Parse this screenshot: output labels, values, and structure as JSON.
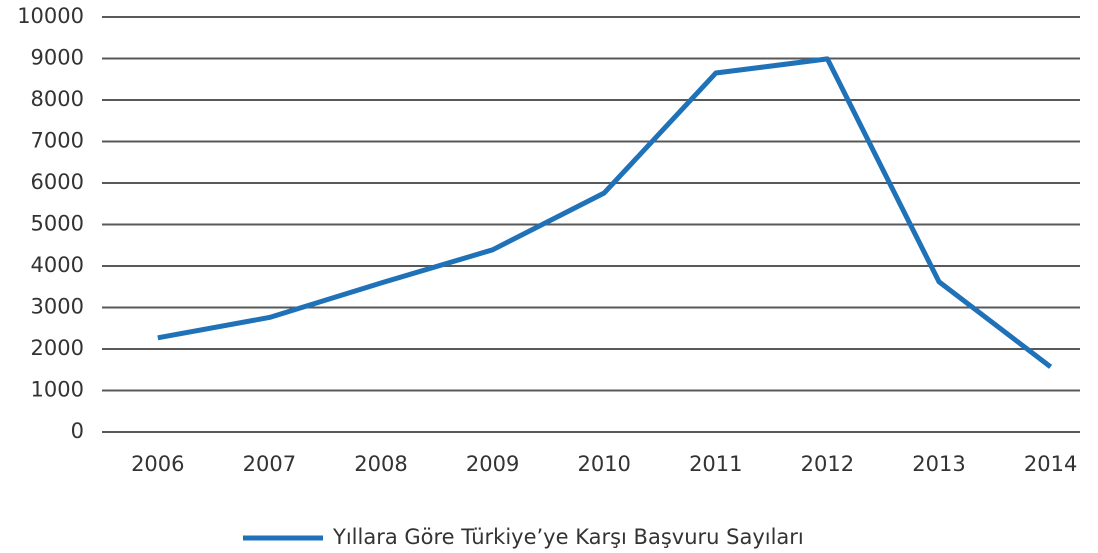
{
  "chart_data": {
    "type": "line",
    "categories": [
      "2006",
      "2007",
      "2008",
      "2009",
      "2010",
      "2011",
      "2012",
      "2013",
      "2014"
    ],
    "series": [
      {
        "name": "Yıllara Göre Türkiye’ye Karşı Başvuru Sayıları",
        "color": "#1f72b8",
        "values": [
          2270,
          2760,
          3590,
          4390,
          5760,
          8650,
          8990,
          3620,
          1570
        ]
      }
    ],
    "ylim": [
      0,
      10000
    ],
    "yticks": [
      0,
      1000,
      2000,
      3000,
      4000,
      5000,
      6000,
      7000,
      8000,
      9000,
      10000
    ],
    "grid": true,
    "legend": "bottom"
  }
}
